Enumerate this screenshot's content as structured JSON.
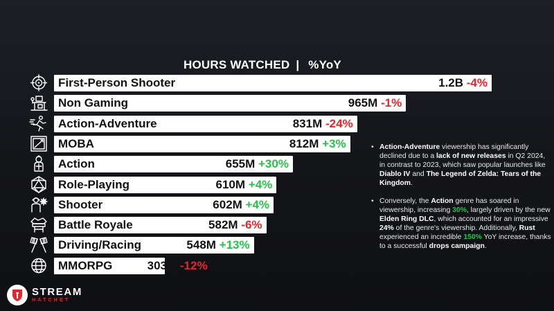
{
  "header": {
    "title_left": "HOURS WATCHED",
    "separator": "|",
    "title_right": "%YoY"
  },
  "chart_data": {
    "type": "bar",
    "orientation": "horizontal",
    "title": "HOURS WATCHED | %YoY",
    "unit": "hours watched",
    "categories": [
      "First-Person Shooter",
      "Non Gaming",
      "Action-Adventure",
      "MOBA",
      "Action",
      "Role-Playing",
      "Shooter",
      "Battle Royale",
      "Driving/Racing",
      "MMORPG"
    ],
    "values": [
      1200000000,
      965000000,
      831000000,
      812000000,
      655000000,
      610000000,
      602000000,
      582000000,
      548000000,
      303000000
    ],
    "value_labels": [
      "1.2B",
      "965M",
      "831M",
      "812M",
      "655M",
      "610M",
      "602M",
      "582M",
      "548M",
      "303M"
    ],
    "yoy_labels": [
      "-4%",
      "-1%",
      "-24%",
      "+3%",
      "+30%",
      "+4%",
      "+4%",
      "-6%",
      "+13%",
      "-12%"
    ],
    "yoy_values": [
      -4,
      -1,
      -24,
      3,
      30,
      4,
      4,
      -6,
      13,
      -12
    ],
    "icons": [
      "crosshair-icon",
      "desk-icon",
      "running-person-icon",
      "frame-icon",
      "knight-icon",
      "d20-dice-icon",
      "soldier-icon",
      "battle-royale-icon",
      "checkered-flags-icon",
      "globe-icon"
    ],
    "colors": {
      "bar": "#ffffff",
      "negative": "#e5262c",
      "positive": "#28c24a"
    }
  },
  "notes": [
    {
      "parts": [
        {
          "t": "Action-Adventure",
          "s": "b"
        },
        {
          "t": " viewership has significantly declined due to a ",
          "s": ""
        },
        {
          "t": "lack of new releases",
          "s": "b"
        },
        {
          "t": " in Q2 2024, in contrast to 2023, which saw popular launches like ",
          "s": ""
        },
        {
          "t": "Diablo IV",
          "s": "b"
        },
        {
          "t": " and ",
          "s": ""
        },
        {
          "t": "The Legend of Zelda: Tears of the Kingdom",
          "s": "b"
        },
        {
          "t": ".",
          "s": ""
        }
      ]
    },
    {
      "parts": [
        {
          "t": "Conversely, the ",
          "s": ""
        },
        {
          "t": "Action",
          "s": "b"
        },
        {
          "t": " genre has soared in viewership, increasing ",
          "s": ""
        },
        {
          "t": "30%",
          "s": "g"
        },
        {
          "t": ", largely driven by the new ",
          "s": ""
        },
        {
          "t": "Elden Ring DLC",
          "s": "b"
        },
        {
          "t": ", which accounted for an impressive ",
          "s": ""
        },
        {
          "t": "24%",
          "s": "b"
        },
        {
          "t": " of the genre's viewership. Additionally, ",
          "s": ""
        },
        {
          "t": "Rust",
          "s": "b"
        },
        {
          "t": " experienced an incredible ",
          "s": ""
        },
        {
          "t": "150%",
          "s": "g"
        },
        {
          "t": " YoY increase, thanks to a successful ",
          "s": ""
        },
        {
          "t": "drops campaign",
          "s": "b"
        },
        {
          "t": ".",
          "s": ""
        }
      ]
    }
  ],
  "bullet": "•",
  "logo": {
    "main": "STREAM",
    "sub": "HATCHET",
    "accent": "#e5262c"
  }
}
